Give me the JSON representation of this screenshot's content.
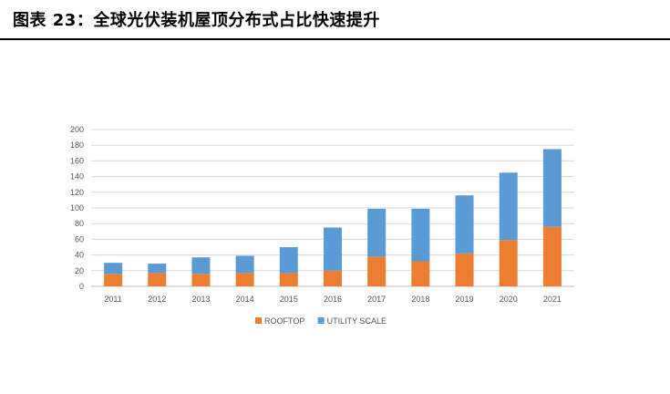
{
  "figure_title": "图表 23：全球光伏装机屋顶分布式占比快速提升",
  "chart_data": {
    "type": "bar",
    "stacked": true,
    "title": "",
    "xlabel": "",
    "ylabel": "",
    "categories": [
      "2011",
      "2012",
      "2013",
      "2014",
      "2015",
      "2016",
      "2017",
      "2018",
      "2019",
      "2020",
      "2021"
    ],
    "series": [
      {
        "name": "ROOFTOP",
        "color": "#ED7D31",
        "values": [
          16,
          17,
          16,
          17,
          17,
          20,
          38,
          32,
          42,
          59,
          76
        ]
      },
      {
        "name": "UTILITY SCALE",
        "color": "#5B9BD5",
        "values": [
          14,
          12,
          21,
          22,
          33,
          55,
          61,
          67,
          74,
          86,
          99
        ]
      }
    ],
    "ylim": [
      0,
      200
    ],
    "yticks": [
      0,
      20,
      40,
      60,
      80,
      100,
      120,
      140,
      160,
      180,
      200
    ],
    "grid": true,
    "legend_position": "bottom"
  }
}
